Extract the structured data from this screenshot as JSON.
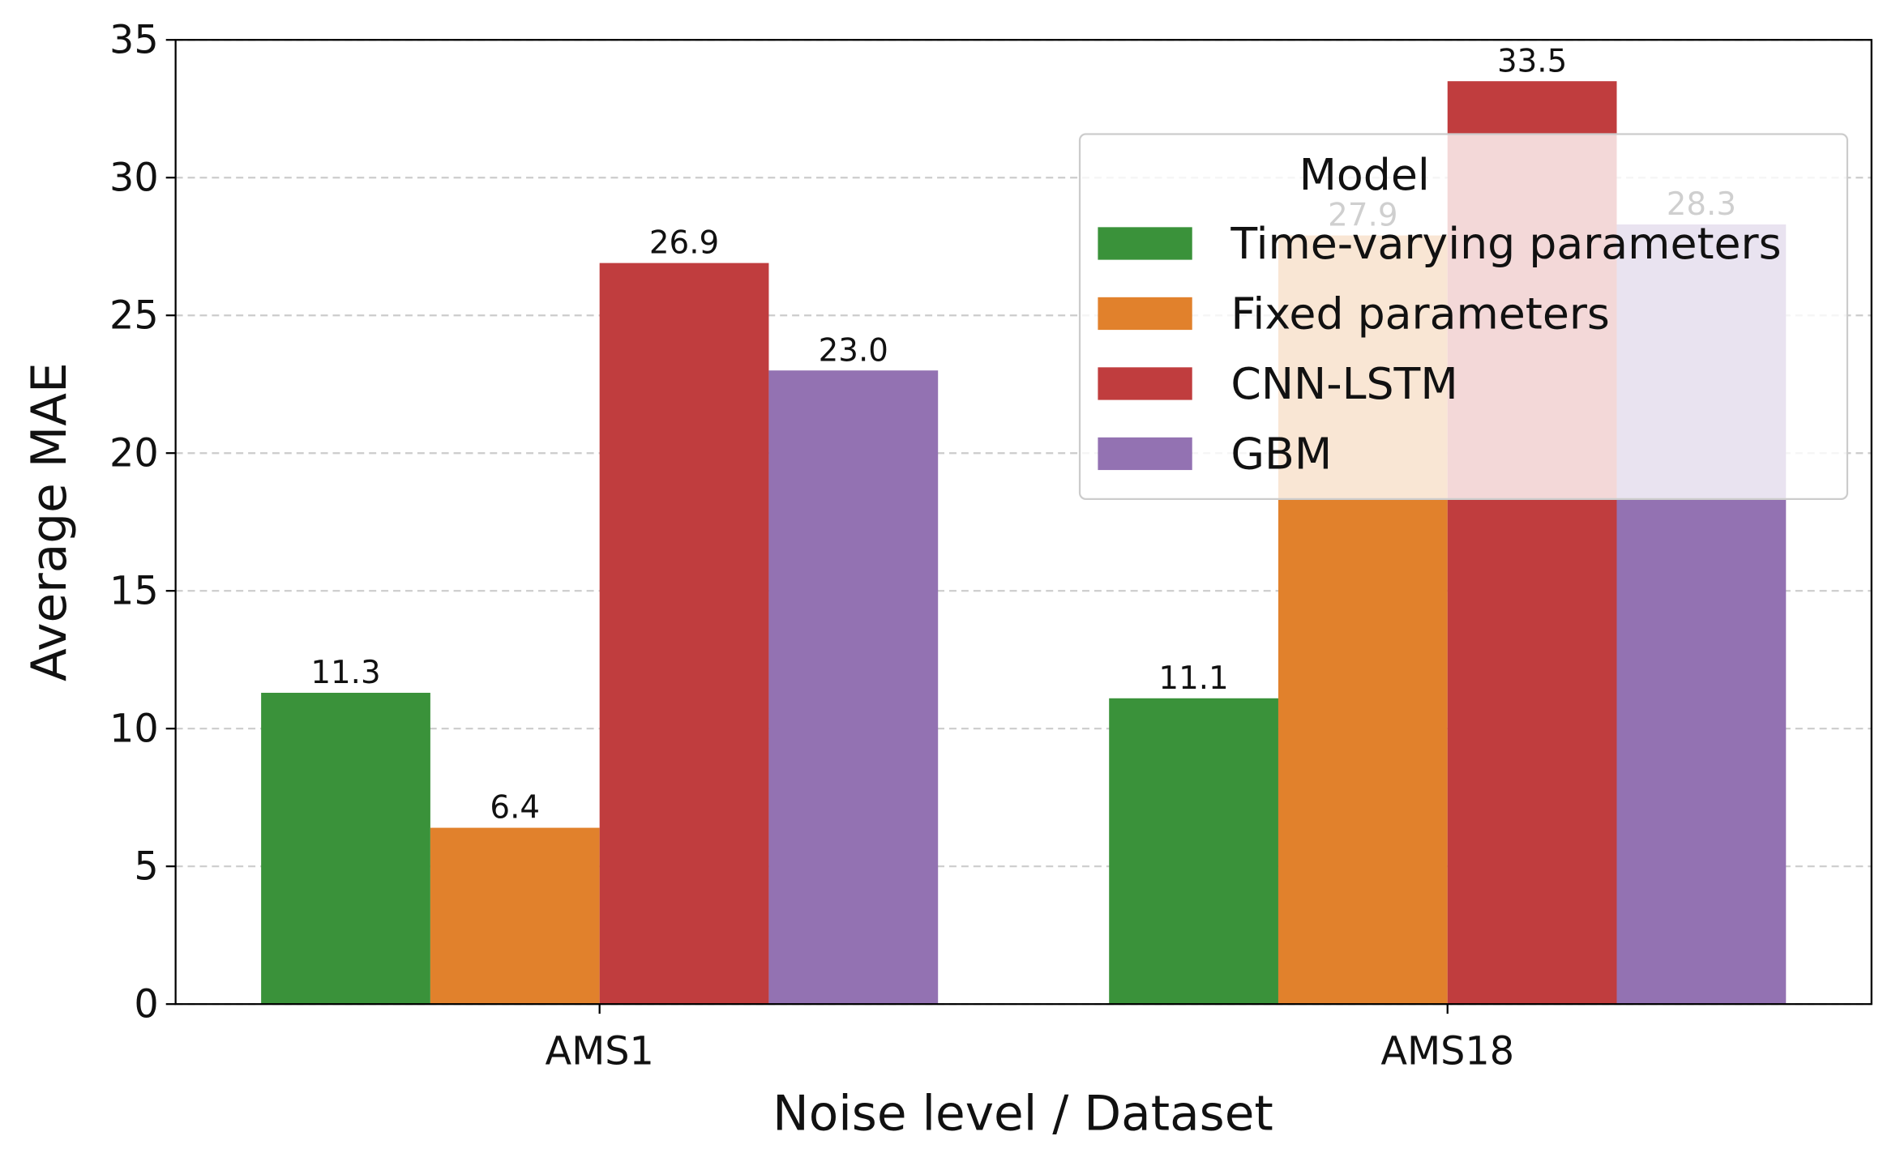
{
  "chart_data": {
    "type": "bar",
    "x_label": "Noise level / Dataset",
    "y_label": "Average MAE",
    "categories": [
      "AMS1",
      "AMS18"
    ],
    "series": [
      {
        "name": "Time-varying parameters",
        "color": "#3a923a",
        "values": [
          11.3,
          11.1
        ],
        "value_labels": [
          "11.3",
          "11.1"
        ]
      },
      {
        "name": "Fixed parameters",
        "color": "#e1812c",
        "values": [
          6.4,
          27.9
        ],
        "value_labels": [
          "6.4",
          "27.9"
        ]
      },
      {
        "name": "CNN-LSTM",
        "color": "#c03d3e",
        "values": [
          26.9,
          33.5
        ],
        "value_labels": [
          "26.9",
          "33.5"
        ]
      },
      {
        "name": "GBM",
        "color": "#9372b2",
        "values": [
          23.0,
          28.3
        ],
        "value_labels": [
          "23.0",
          "28.3"
        ]
      }
    ],
    "legend_title": "Model",
    "legend_position": "upper right",
    "ylim": [
      0,
      35
    ],
    "yticks": [
      0,
      5,
      10,
      15,
      20,
      25,
      30,
      35
    ],
    "grid": true
  }
}
